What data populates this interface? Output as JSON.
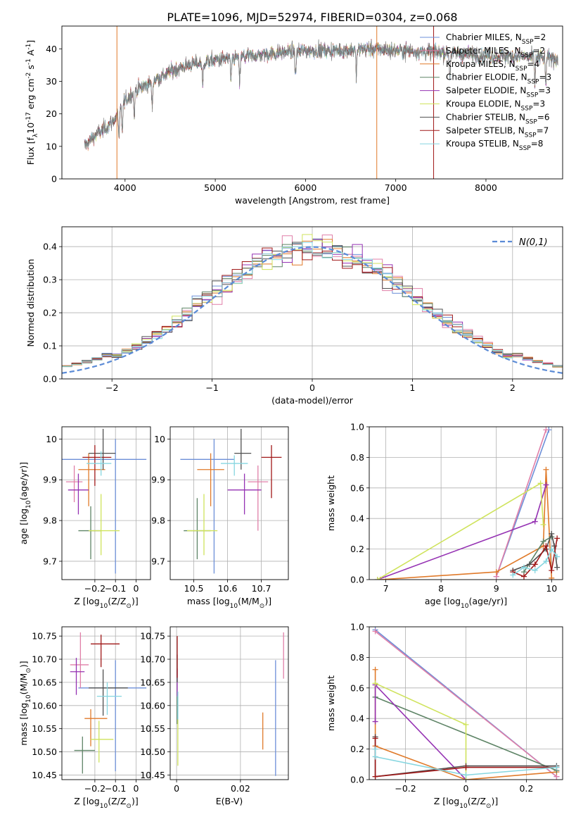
{
  "figure_title": "PLATE=1096, MJD=52974, FIBERID=0304, z=0.068",
  "series": [
    {
      "key": "chabrier_miles",
      "legend": "Chabrier MILES, N_SSP=2",
      "color": "#6d8fd8"
    },
    {
      "key": "salpeter_miles",
      "legend": "Salpeter MILES, N_SSP=2",
      "color": "#e07fa8"
    },
    {
      "key": "kroupa_miles",
      "legend": "Kroupa MILES, N_SSP=4",
      "color": "#e07a2a"
    },
    {
      "key": "chabrier_elodie",
      "legend": "Chabrier ELODIE, N_SSP=3",
      "color": "#5e8466"
    },
    {
      "key": "salpeter_elodie",
      "legend": "Salpeter ELODIE, N_SSP=3",
      "color": "#9532b3"
    },
    {
      "key": "kroupa_elodie",
      "legend": "Kroupa ELODIE, N_SSP=3",
      "color": "#cfe35c"
    },
    {
      "key": "chabrier_stelib",
      "legend": "Chabrier STELIB, N_SSP=6",
      "color": "#505050"
    },
    {
      "key": "salpeter_stelib",
      "legend": "Salpeter STELIB, N_SSP=7",
      "color": "#a01818"
    },
    {
      "key": "kroupa_stelib",
      "legend": "Kroupa STELIB, N_SSP=8",
      "color": "#86d6e0"
    }
  ],
  "chart_data": [
    {
      "id": "spectrum",
      "type": "line",
      "xlabel": "wavelength [Angstrom, rest frame]",
      "ylabel": "Flux [f_λ10^-17 erg cm^-2 s^-1 A^-1]",
      "xlim": [
        3300,
        8850
      ],
      "ylim": [
        0,
        47
      ],
      "xticks": [
        4000,
        5000,
        6000,
        7000,
        8000
      ],
      "yticks": [
        0,
        10,
        20,
        30,
        40
      ],
      "grid": false,
      "legend_loc": "right",
      "continuum": {
        "x": [
          3550,
          3650,
          3800,
          3900,
          4000,
          4100,
          4300,
          4500,
          4700,
          5000,
          5300,
          5600,
          6000,
          6400,
          6700,
          7000,
          7500,
          8000,
          8500,
          8800
        ],
        "y": [
          10,
          13,
          16,
          19,
          24,
          27,
          30,
          33,
          35,
          36.5,
          37.5,
          38.5,
          39.5,
          39.5,
          40,
          39.5,
          39,
          38,
          37.5,
          37
        ]
      },
      "dips": [
        3933,
        3968,
        4102,
        4300,
        4861,
        5175,
        5270,
        5890,
        6563,
        7600,
        8542,
        8662
      ],
      "spikes": [
        3910,
        6790,
        7420
      ]
    },
    {
      "id": "residuals",
      "type": "histogram",
      "xlabel": "(data-model)/error",
      "ylabel": "Normed distribution",
      "xlim": [
        -2.5,
        2.5
      ],
      "ylim": [
        0,
        0.46
      ],
      "xticks": [
        -2,
        -1,
        0,
        1,
        2
      ],
      "yticks": [
        0.0,
        0.1,
        0.2,
        0.3,
        0.4
      ],
      "grid": true,
      "bins": [
        -2.5,
        2.5,
        50
      ],
      "legend": "N(0,1)",
      "legend_loc": "top-right",
      "gaussian": {
        "mean": 0,
        "sigma": 1
      }
    },
    {
      "id": "age_vs_Z",
      "type": "scatter",
      "xlabel": "Z [log10(Z/Z⊙)]",
      "ylabel": "age  [log10(age/yr)]",
      "xlim": [
        -0.36,
        0.07
      ],
      "ylim": [
        9.655,
        10.03
      ],
      "xticks": [
        -0.2,
        -0.1,
        0.0
      ],
      "yticks": [
        9.7,
        9.8,
        9.9,
        10.0
      ],
      "grid": true,
      "points": [
        {
          "s": 0,
          "x": -0.1,
          "y": 9.95,
          "ex": [
            0.3,
            0.15
          ],
          "ey": [
            0.28,
            0.05
          ]
        },
        {
          "s": 1,
          "x": -0.3,
          "y": 9.895,
          "ex": [
            0.04,
            0.04
          ],
          "ey": [
            0.05,
            0.04
          ]
        },
        {
          "s": 2,
          "x": -0.23,
          "y": 9.925,
          "ex": [
            0.05,
            0.08
          ],
          "ey": [
            0.09,
            0.04
          ]
        },
        {
          "s": 3,
          "x": -0.22,
          "y": 9.775,
          "ex": [
            0.06,
            0.05
          ],
          "ey": [
            0.07,
            0.06
          ]
        },
        {
          "s": 4,
          "x": -0.28,
          "y": 9.875,
          "ex": [
            0.05,
            0.05
          ],
          "ey": [
            0.06,
            0.04
          ]
        },
        {
          "s": 5,
          "x": -0.17,
          "y": 9.775,
          "ex": [
            0.06,
            0.09
          ],
          "ey": [
            0.06,
            0.09
          ]
        },
        {
          "s": 6,
          "x": -0.16,
          "y": 9.965,
          "ex": [
            0.07,
            0.06
          ],
          "ey": [
            0.04,
            0.06
          ]
        },
        {
          "s": 7,
          "x": -0.2,
          "y": 9.955,
          "ex": [
            0.06,
            0.08
          ],
          "ey": [
            0.07,
            0.03
          ]
        },
        {
          "s": 8,
          "x": -0.17,
          "y": 9.94,
          "ex": [
            0.07,
            0.05
          ],
          "ey": [
            0.03,
            0.03
          ]
        }
      ]
    },
    {
      "id": "age_vs_mass",
      "type": "scatter",
      "xlabel": "mass [log10(M/M⊙)]",
      "ylabel": "",
      "xlim": [
        10.43,
        10.78
      ],
      "ylim": [
        9.655,
        10.03
      ],
      "xticks": [
        10.5,
        10.6,
        10.7
      ],
      "yticks": [
        9.7,
        9.8,
        9.9,
        10.0
      ],
      "grid": true,
      "points": [
        {
          "s": 0,
          "x": 10.56,
          "y": 9.95,
          "ex": [
            0.1,
            0.06
          ],
          "ey": [
            0.28,
            0.05
          ]
        },
        {
          "s": 1,
          "x": 10.69,
          "y": 9.895,
          "ex": [
            0.03,
            0.03
          ],
          "ey": [
            0.12,
            0.04
          ]
        },
        {
          "s": 2,
          "x": 10.55,
          "y": 9.925,
          "ex": [
            0.04,
            0.04
          ],
          "ey": [
            0.09,
            0.04
          ]
        },
        {
          "s": 3,
          "x": 10.51,
          "y": 9.775,
          "ex": [
            0.04,
            0.04
          ],
          "ey": [
            0.07,
            0.08
          ]
        },
        {
          "s": 4,
          "x": 10.65,
          "y": 9.875,
          "ex": [
            0.05,
            0.05
          ],
          "ey": [
            0.06,
            0.04
          ]
        },
        {
          "s": 5,
          "x": 10.53,
          "y": 9.775,
          "ex": [
            0.05,
            0.04
          ],
          "ey": [
            0.06,
            0.09
          ]
        },
        {
          "s": 6,
          "x": 10.64,
          "y": 9.965,
          "ex": [
            0.02,
            0.03
          ],
          "ey": [
            0.04,
            0.06
          ]
        },
        {
          "s": 7,
          "x": 10.73,
          "y": 9.955,
          "ex": [
            0.03,
            0.03
          ],
          "ey": [
            0.1,
            0.03
          ]
        },
        {
          "s": 8,
          "x": 10.62,
          "y": 9.94,
          "ex": [
            0.04,
            0.04
          ],
          "ey": [
            0.03,
            0.02
          ]
        }
      ]
    },
    {
      "id": "weight_vs_age",
      "type": "line",
      "xlabel": "age  [log10(age/yr)]",
      "ylabel": "mass weight",
      "xlim": [
        6.7,
        10.2
      ],
      "ylim": [
        0,
        1
      ],
      "xticks": [
        7,
        8,
        9,
        10
      ],
      "yticks": [
        0.0,
        0.2,
        0.4,
        0.6,
        0.8,
        1.0
      ],
      "grid": true,
      "series_points": [
        {
          "s": 0,
          "x": [
            9.0,
            9.95
          ],
          "y": [
            0.02,
            0.98
          ]
        },
        {
          "s": 1,
          "x": [
            9.0,
            9.9
          ],
          "y": [
            0.02,
            0.98
          ]
        },
        {
          "s": 2,
          "x": [
            6.9,
            9.0,
            9.85,
            9.9,
            10.0
          ],
          "y": [
            0.0,
            0.05,
            0.22,
            0.72,
            0.01
          ]
        },
        {
          "s": 3,
          "x": [
            9.5,
            9.85,
            10.0
          ],
          "y": [
            0.05,
            0.25,
            0.28
          ]
        },
        {
          "s": 4,
          "x": [
            6.85,
            9.7,
            9.9
          ],
          "y": [
            0.0,
            0.38,
            0.62
          ]
        },
        {
          "s": 5,
          "x": [
            6.85,
            9.8,
            9.85
          ],
          "y": [
            0.0,
            0.63,
            0.36
          ]
        },
        {
          "s": 6,
          "x": [
            9.3,
            9.6,
            9.9,
            10.0,
            10.05,
            10.1
          ],
          "y": [
            0.06,
            0.1,
            0.2,
            0.3,
            0.22,
            0.08
          ]
        },
        {
          "s": 7,
          "x": [
            9.3,
            9.5,
            9.7,
            9.9,
            10.0,
            10.1
          ],
          "y": [
            0.05,
            0.02,
            0.1,
            0.22,
            0.06,
            0.27
          ]
        },
        {
          "s": 8,
          "x": [
            9.3,
            9.5,
            9.7,
            9.9,
            10.0,
            10.1
          ],
          "y": [
            0.03,
            0.08,
            0.06,
            0.12,
            0.2,
            0.15
          ]
        }
      ]
    },
    {
      "id": "mass_vs_Z",
      "type": "scatter",
      "xlabel": "Z [log10(Z/Z⊙)]",
      "ylabel": "mass [log10(M/M⊙)]",
      "xlim": [
        -0.36,
        0.07
      ],
      "ylim": [
        10.44,
        10.77
      ],
      "xticks": [
        -0.2,
        -0.1,
        0.0
      ],
      "yticks": [
        10.45,
        10.5,
        10.55,
        10.6,
        10.65,
        10.7,
        10.75
      ],
      "grid": true,
      "points": [
        {
          "s": 0,
          "x": -0.1,
          "y": 10.638,
          "ex": [
            0.18,
            0.15
          ],
          "ey": [
            0.18,
            0.06
          ]
        },
        {
          "s": 1,
          "x": -0.27,
          "y": 10.688,
          "ex": [
            0.05,
            0.04
          ],
          "ey": [
            0.05,
            0.07
          ]
        },
        {
          "s": 2,
          "x": -0.22,
          "y": 10.572,
          "ex": [
            0.03,
            0.08
          ],
          "ey": [
            0.06,
            0.02
          ]
        },
        {
          "s": 3,
          "x": -0.26,
          "y": 10.503,
          "ex": [
            0.04,
            0.06
          ],
          "ey": [
            0.05,
            0.03
          ]
        },
        {
          "s": 4,
          "x": -0.29,
          "y": 10.673,
          "ex": [
            0.03,
            0.04
          ],
          "ey": [
            0.05,
            0.03
          ]
        },
        {
          "s": 5,
          "x": -0.18,
          "y": 10.527,
          "ex": [
            0.04,
            0.07
          ],
          "ey": [
            0.05,
            0.04
          ]
        },
        {
          "s": 6,
          "x": -0.16,
          "y": 10.638,
          "ex": [
            0.07,
            0.12
          ],
          "ey": [
            0.06,
            0.04
          ]
        },
        {
          "s": 7,
          "x": -0.17,
          "y": 10.733,
          "ex": [
            0.05,
            0.09
          ],
          "ey": [
            0.05,
            0.02
          ]
        },
        {
          "s": 8,
          "x": -0.14,
          "y": 10.62,
          "ex": [
            0.05,
            0.07
          ],
          "ey": [
            0.04,
            0.03
          ]
        }
      ]
    },
    {
      "id": "mass_vs_ebv",
      "type": "scatter",
      "xlabel": "E(B-V)",
      "ylabel": "",
      "xlim": [
        -0.002,
        0.035
      ],
      "ylim": [
        10.44,
        10.77
      ],
      "xticks": [
        0.0,
        0.02
      ],
      "yticks": [
        10.45,
        10.5,
        10.55,
        10.6,
        10.65,
        10.7,
        10.75
      ],
      "grid": true,
      "points": [
        {
          "s": 0,
          "x": 0.031,
          "y": 10.578,
          "ex": [
            0,
            0
          ],
          "ey": [
            0.13,
            0.12
          ]
        },
        {
          "s": 1,
          "x": 0.0335,
          "y": 10.708,
          "ex": [
            0,
            0
          ],
          "ey": [
            0.05,
            0.05
          ]
        },
        {
          "s": 2,
          "x": 0.027,
          "y": 10.545,
          "ex": [
            0,
            0
          ],
          "ey": [
            0.04,
            0.04
          ]
        },
        {
          "s": 3,
          "x": 0.0002,
          "y": 10.59,
          "ex": [
            0,
            0
          ],
          "ey": [
            0.03,
            0.03
          ]
        },
        {
          "s": 4,
          "x": 0.0002,
          "y": 10.65,
          "ex": [
            0,
            0
          ],
          "ey": [
            0.03,
            0.03
          ]
        },
        {
          "s": 5,
          "x": 0.0004,
          "y": 10.52,
          "ex": [
            0,
            0
          ],
          "ey": [
            0.05,
            0.05
          ]
        },
        {
          "s": 6,
          "x": 0.0002,
          "y": 10.68,
          "ex": [
            0,
            0
          ],
          "ey": [
            0.03,
            0.03
          ]
        },
        {
          "s": 7,
          "x": 0.0002,
          "y": 10.71,
          "ex": [
            0,
            0
          ],
          "ey": [
            0.05,
            0.04
          ]
        },
        {
          "s": 8,
          "x": 0.0004,
          "y": 10.6,
          "ex": [
            0,
            0
          ],
          "ey": [
            0.03,
            0.03
          ]
        }
      ]
    },
    {
      "id": "weight_vs_Z",
      "type": "line",
      "xlabel": "Z [log10(Z/Z⊙)]",
      "ylabel": "mass weight",
      "xlim": [
        -0.32,
        0.32
      ],
      "ylim": [
        0,
        1
      ],
      "xticks": [
        -0.2,
        0.0,
        0.2
      ],
      "yticks": [
        0.0,
        0.2,
        0.4,
        0.6,
        0.8,
        1.0
      ],
      "grid": true,
      "series_points": [
        {
          "s": 0,
          "x": [
            -0.3,
            0.3
          ],
          "y": [
            0.98,
            0.02
          ]
        },
        {
          "s": 1,
          "x": [
            -0.3,
            0.3
          ],
          "y": [
            0.97,
            0.02
          ]
        },
        {
          "s": 2,
          "x": [
            -0.3,
            -0.3,
            0.0,
            0.3
          ],
          "y": [
            0.72,
            0.22,
            0.0,
            0.05
          ]
        },
        {
          "s": 3,
          "x": [
            -0.3,
            0.3
          ],
          "y": [
            0.54,
            0.06
          ]
        },
        {
          "s": 4,
          "x": [
            -0.3,
            -0.3,
            0.0
          ],
          "y": [
            0.38,
            0.62,
            0.0
          ]
        },
        {
          "s": 5,
          "x": [
            -0.3,
            0.0,
            0.0
          ],
          "y": [
            0.63,
            0.36,
            0.0
          ]
        },
        {
          "s": 6,
          "x": [
            -0.3,
            -0.3,
            0.0,
            0.3
          ],
          "y": [
            0.28,
            0.02,
            0.09,
            0.09
          ]
        },
        {
          "s": 7,
          "x": [
            -0.3,
            -0.3,
            0.0,
            0.3
          ],
          "y": [
            0.27,
            0.02,
            0.08,
            0.08
          ]
        },
        {
          "s": 8,
          "x": [
            -0.3,
            -0.3,
            0.0,
            0.3
          ],
          "y": [
            0.2,
            0.15,
            0.03,
            0.08
          ]
        }
      ]
    }
  ]
}
